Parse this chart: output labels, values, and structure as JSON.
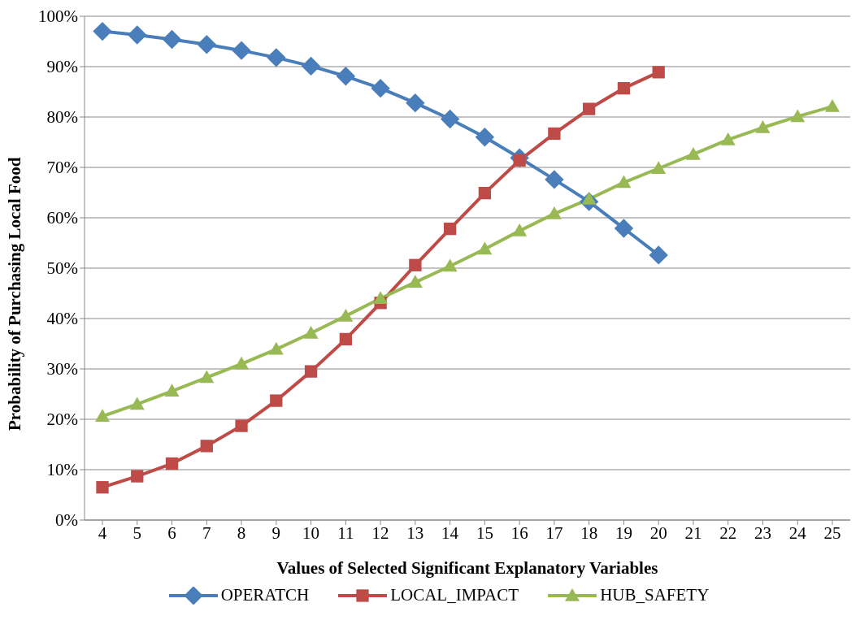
{
  "chart_data": {
    "type": "line",
    "xlabel": "Values of Selected Significant Explanatory Variables",
    "ylabel": "Probability of Purchasing Local Food",
    "categories": [
      "4",
      "5",
      "6",
      "7",
      "8",
      "9",
      "10",
      "11",
      "12",
      "13",
      "14",
      "15",
      "16",
      "17",
      "18",
      "19",
      "20",
      "21",
      "22",
      "23",
      "24",
      "25"
    ],
    "series": [
      {
        "name": "OPERATCH",
        "color": "#4a7ebb",
        "marker": "diamond",
        "values": [
          97,
          96.3,
          95.4,
          94.4,
          93.2,
          91.8,
          90.1,
          88.1,
          85.7,
          82.8,
          79.6,
          76,
          71.9,
          67.6,
          63.2,
          57.9,
          52.6,
          null,
          null,
          null,
          null,
          null
        ]
      },
      {
        "name": "LOCAL_IMPACT",
        "color": "#be4b48",
        "marker": "square",
        "values": [
          6.5,
          8.7,
          11.2,
          14.7,
          18.7,
          23.7,
          29.5,
          35.9,
          43.1,
          50.6,
          57.8,
          64.9,
          71.4,
          76.7,
          81.6,
          85.7,
          88.9,
          null,
          null,
          null,
          null,
          null
        ]
      },
      {
        "name": "HUB_SAFETY",
        "color": "#98b954",
        "marker": "triangle",
        "values": [
          20.6,
          23,
          25.6,
          28.3,
          31,
          33.9,
          37.1,
          40.5,
          44,
          47.2,
          50.4,
          53.8,
          57.4,
          60.8,
          63.7,
          67,
          69.8,
          72.6,
          75.5,
          77.9,
          80.1,
          82.1
        ]
      }
    ],
    "ylim": [
      0,
      100
    ],
    "yticks": [
      {
        "value": 0,
        "label": "0%"
      },
      {
        "value": 10,
        "label": "10%"
      },
      {
        "value": 20,
        "label": "20%"
      },
      {
        "value": 30,
        "label": "30%"
      },
      {
        "value": 40,
        "label": "40%"
      },
      {
        "value": 50,
        "label": "50%"
      },
      {
        "value": 60,
        "label": "60%"
      },
      {
        "value": 70,
        "label": "70%"
      },
      {
        "value": 80,
        "label": "80%"
      },
      {
        "value": 90,
        "label": "90%"
      },
      {
        "value": 100,
        "label": "100%"
      }
    ],
    "grid": "y",
    "legend": "bottom",
    "line_style": "solid"
  }
}
